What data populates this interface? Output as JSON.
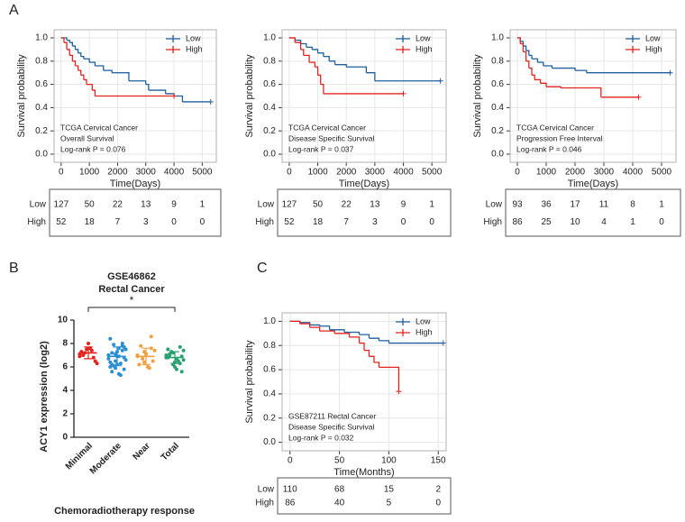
{
  "chart_data": [
    {
      "type": "km",
      "panel": "A",
      "xlabel": "Time(Days)",
      "ylabel": "Survival probability",
      "annotations": [
        "TCGA Cervical Cancer",
        "Overall Survival",
        "Log-rank P = 0.076"
      ],
      "xlim": [
        -250,
        5500
      ],
      "xticks": [
        0,
        1000,
        2000,
        3000,
        4000,
        5000
      ],
      "ylim": [
        -0.07,
        1.07
      ],
      "yticks": [
        {
          "value": 0,
          "label": "0.0"
        },
        0.2,
        0.4,
        0.6,
        0.8,
        {
          "value": 1,
          "label": "1.0"
        }
      ],
      "grid": true,
      "series": [
        {
          "name": "Low",
          "color": "#1f5f9e",
          "x": [
            0,
            100,
            200,
            300,
            400,
            500,
            600,
            700,
            800,
            1000,
            1200,
            1500,
            1800,
            2300,
            2400,
            3000,
            3100,
            3700,
            4000,
            4300,
            5300
          ],
          "values": [
            1,
            1,
            0.98,
            0.96,
            0.93,
            0.9,
            0.87,
            0.84,
            0.82,
            0.79,
            0.76,
            0.72,
            0.7,
            0.7,
            0.63,
            0.6,
            0.55,
            0.52,
            0.5,
            0.45,
            0.45
          ]
        },
        {
          "name": "High",
          "color": "#e3231f",
          "x": [
            0,
            100,
            200,
            300,
            400,
            500,
            600,
            700,
            800,
            900,
            1100,
            1200,
            4000
          ],
          "values": [
            1,
            0.96,
            0.9,
            0.85,
            0.8,
            0.76,
            0.72,
            0.68,
            0.64,
            0.6,
            0.55,
            0.5,
            0.5
          ]
        }
      ],
      "risk_table": [
        {
          "name": "Low",
          "color": "#1f5f9e",
          "values": [
            127,
            50,
            22,
            13,
            9,
            1
          ]
        },
        {
          "name": "High",
          "color": "#e3231f",
          "values": [
            52,
            18,
            7,
            3,
            0,
            0
          ]
        }
      ]
    },
    {
      "type": "km",
      "xlabel": "Time(Days)",
      "ylabel": "Survival probability",
      "annotations": [
        "TCGA Cervical Cancer",
        "Disease Specific Survival",
        "Log-rank P = 0.037"
      ],
      "xlim": [
        -250,
        5500
      ],
      "xticks": [
        0,
        1000,
        2000,
        3000,
        4000,
        5000
      ],
      "ylim": [
        -0.07,
        1.07
      ],
      "yticks": [
        {
          "value": 0,
          "label": "0.0"
        },
        0.2,
        0.4,
        0.6,
        0.8,
        {
          "value": 1,
          "label": "1.0"
        }
      ],
      "grid": true,
      "series": [
        {
          "name": "Low",
          "color": "#1f5f9e",
          "x": [
            0,
            200,
            400,
            600,
            800,
            1000,
            1200,
            1400,
            1600,
            2000,
            2600,
            2700,
            3000,
            5300
          ],
          "values": [
            1,
            0.98,
            0.95,
            0.92,
            0.9,
            0.87,
            0.84,
            0.8,
            0.77,
            0.75,
            0.75,
            0.7,
            0.63,
            0.63
          ]
        },
        {
          "name": "High",
          "color": "#e3231f",
          "x": [
            0,
            200,
            400,
            500,
            700,
            900,
            1000,
            1100,
            1200,
            4000
          ],
          "values": [
            1,
            0.96,
            0.9,
            0.85,
            0.79,
            0.75,
            0.68,
            0.6,
            0.52,
            0.52
          ]
        }
      ],
      "risk_table": [
        {
          "name": "Low",
          "color": "#1f5f9e",
          "values": [
            127,
            50,
            22,
            13,
            9,
            1
          ]
        },
        {
          "name": "High",
          "color": "#e3231f",
          "values": [
            52,
            18,
            7,
            3,
            0,
            0
          ]
        }
      ]
    },
    {
      "type": "km",
      "xlabel": "Time(Days)",
      "ylabel": "Survival probability",
      "annotations": [
        "TCGA Cervical Cancer",
        "Progression Free Interval",
        "Log-rank P = 0.046"
      ],
      "xlim": [
        -250,
        5500
      ],
      "xticks": [
        0,
        1000,
        2000,
        3000,
        4000,
        5000
      ],
      "ylim": [
        -0.07,
        1.07
      ],
      "yticks": [
        {
          "value": 0,
          "label": "0.0"
        },
        0.2,
        0.4,
        0.6,
        0.8,
        {
          "value": 1,
          "label": "1.0"
        }
      ],
      "grid": true,
      "series": [
        {
          "name": "Low",
          "color": "#1f5f9e",
          "x": [
            0,
            100,
            200,
            300,
            400,
            500,
            700,
            900,
            1200,
            2000,
            2400,
            5300
          ],
          "values": [
            1,
            0.97,
            0.93,
            0.89,
            0.85,
            0.82,
            0.79,
            0.76,
            0.74,
            0.72,
            0.7,
            0.7
          ]
        },
        {
          "name": "High",
          "color": "#e3231f",
          "x": [
            0,
            100,
            200,
            300,
            400,
            500,
            600,
            800,
            1000,
            1500,
            2800,
            2900,
            4200
          ],
          "values": [
            1,
            0.95,
            0.88,
            0.8,
            0.74,
            0.68,
            0.64,
            0.61,
            0.58,
            0.57,
            0.57,
            0.49,
            0.49
          ]
        }
      ],
      "risk_table": [
        {
          "name": "Low",
          "color": "#1f5f9e",
          "values": [
            93,
            36,
            17,
            11,
            8,
            1
          ]
        },
        {
          "name": "High",
          "color": "#e3231f",
          "values": [
            86,
            25,
            10,
            4,
            1,
            0
          ]
        }
      ]
    },
    {
      "type": "strip",
      "panel": "B",
      "title": "GSE46862",
      "subtitle": "Rectal Cancer",
      "ylabel": "ACY1 expression (log2)",
      "xlabel": "Chemoradiotherapy response",
      "annotation": "*",
      "ylim": [
        0,
        10
      ],
      "yticks": [
        0,
        2,
        4,
        6,
        8,
        10
      ],
      "groups": [
        {
          "name": "Minimal",
          "color": "#e3231f",
          "values": [
            7.1,
            7.5,
            6.8,
            7.3,
            8.0,
            6.5,
            7.0,
            7.6,
            6.3,
            7.2,
            7.4,
            6.9
          ],
          "mean": 7.2,
          "sd": 0.5
        },
        {
          "name": "Moderate",
          "color": "#2a8fd0",
          "values": [
            7.0,
            6.5,
            7.8,
            8.4,
            6.2,
            5.8,
            7.2,
            6.9,
            7.5,
            6.1,
            5.3,
            6.7,
            7.1,
            8.0,
            6.4,
            7.3,
            6.8,
            5.6,
            7.6,
            6.6,
            7.9,
            6.3,
            7.0,
            5.9,
            7.4,
            6.0,
            6.9,
            7.7,
            6.2,
            5.4
          ],
          "mean": 6.9,
          "sd": 0.8
        },
        {
          "name": "Near",
          "color": "#f0a040",
          "values": [
            6.9,
            7.3,
            8.6,
            6.2,
            7.1,
            6.5,
            7.8,
            6.0,
            7.4,
            6.7,
            5.9,
            7.0,
            6.4,
            7.6
          ],
          "mean": 6.9,
          "sd": 0.7
        },
        {
          "name": "Total",
          "color": "#2aa070",
          "values": [
            6.8,
            7.2,
            6.3,
            7.5,
            6.0,
            6.9,
            7.1,
            5.8,
            6.6,
            7.3,
            6.5,
            7.0,
            6.2,
            7.7,
            6.8,
            6.4,
            5.6,
            7.0,
            6.7,
            7.4
          ],
          "mean": 6.8,
          "sd": 0.5
        }
      ]
    },
    {
      "type": "km",
      "panel": "C",
      "xlabel": "Time(Months)",
      "ylabel": "Survival probability",
      "annotations": [
        "GSE87211 Rectal Cancer",
        "Disease Specific Survival",
        "Log-rank P = 0.032"
      ],
      "xlim": [
        -8,
        158
      ],
      "xticks": [
        0,
        50,
        100,
        150
      ],
      "ylim": [
        -0.07,
        1.07
      ],
      "yticks": [
        {
          "value": 0,
          "label": "0.0"
        },
        0.2,
        0.4,
        0.6,
        0.8,
        {
          "value": 1,
          "label": "1.0"
        }
      ],
      "grid": true,
      "series": [
        {
          "name": "Low",
          "color": "#1f5f9e",
          "x": [
            0,
            10,
            20,
            30,
            40,
            55,
            70,
            80,
            90,
            100,
            155
          ],
          "values": [
            1,
            0.99,
            0.97,
            0.96,
            0.93,
            0.91,
            0.89,
            0.86,
            0.84,
            0.82,
            0.82
          ]
        },
        {
          "name": "High",
          "color": "#e3231f",
          "x": [
            0,
            10,
            20,
            30,
            45,
            60,
            70,
            75,
            80,
            85,
            90,
            105,
            110
          ],
          "values": [
            1,
            0.98,
            0.95,
            0.92,
            0.9,
            0.87,
            0.82,
            0.76,
            0.71,
            0.66,
            0.62,
            0.62,
            0.42
          ]
        }
      ],
      "risk_table": [
        {
          "name": "Low",
          "color": "#1f5f9e",
          "values": [
            110,
            68,
            15,
            2
          ]
        },
        {
          "name": "High",
          "color": "#e3231f",
          "values": [
            86,
            40,
            5,
            0
          ]
        }
      ]
    }
  ]
}
